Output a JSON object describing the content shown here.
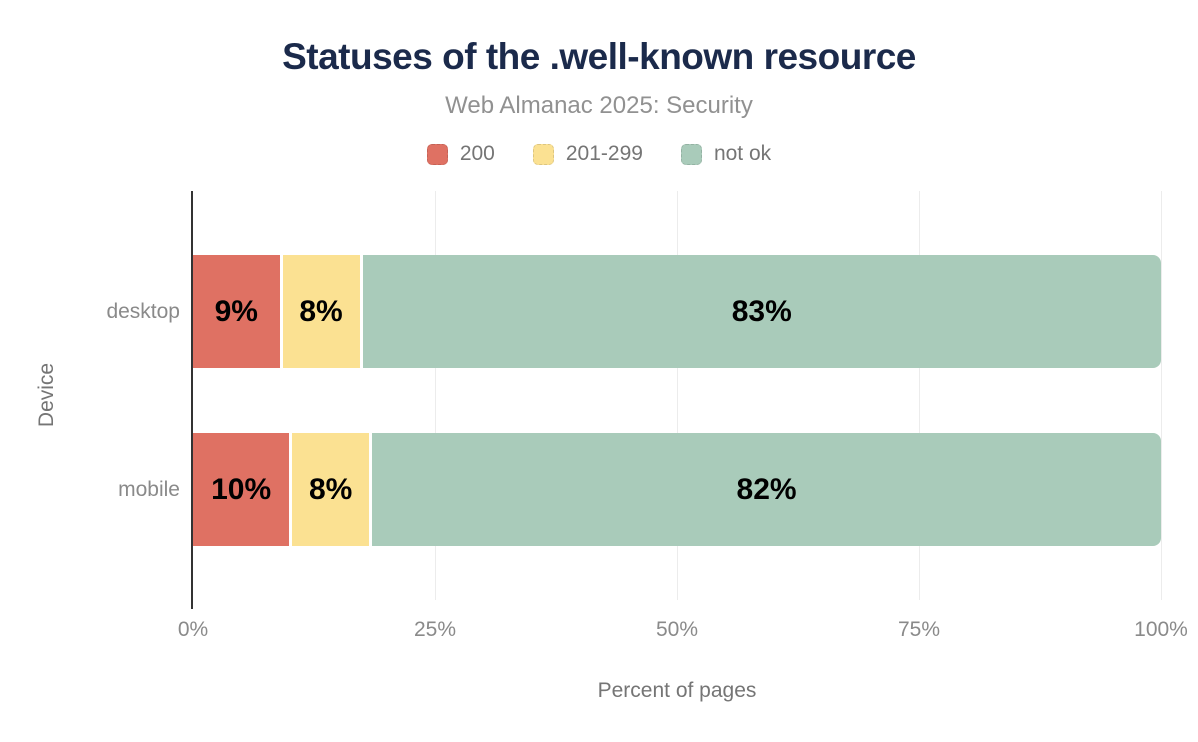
{
  "header": {
    "title": "Statuses of the .well-known resource",
    "subtitle": "Web Almanac 2025: Security"
  },
  "chart_data": {
    "type": "bar",
    "orientation": "horizontal",
    "stacked": true,
    "title": "Statuses of the .well-known resource",
    "subtitle": "Web Almanac 2025: Security",
    "categories": [
      "desktop",
      "mobile"
    ],
    "series": [
      {
        "name": "200",
        "color": "#df7163",
        "values": [
          9,
          10
        ]
      },
      {
        "name": "201-299",
        "color": "#fbe192",
        "values": [
          8,
          8
        ]
      },
      {
        "name": "not ok",
        "color": "#a9cbba",
        "values": [
          83,
          82
        ]
      }
    ],
    "value_suffix": "%",
    "xlabel": "Percent of pages",
    "ylabel": "Device",
    "xlim": [
      0,
      100
    ],
    "xticks": [
      {
        "value": 0,
        "label": "0%"
      },
      {
        "value": 25,
        "label": "25%"
      },
      {
        "value": 50,
        "label": "50%"
      },
      {
        "value": 75,
        "label": "75%"
      },
      {
        "value": 100,
        "label": "100%"
      }
    ],
    "grid": true,
    "legend_position": "top"
  },
  "colors": {
    "title_text": "#1b2a4b",
    "subtitle_text": "#919191",
    "axis_text": "#8a8a8a",
    "gridline": "#ececec",
    "axis_line": "#333333",
    "bar_label_text": "#000000",
    "background": "#ffffff"
  }
}
